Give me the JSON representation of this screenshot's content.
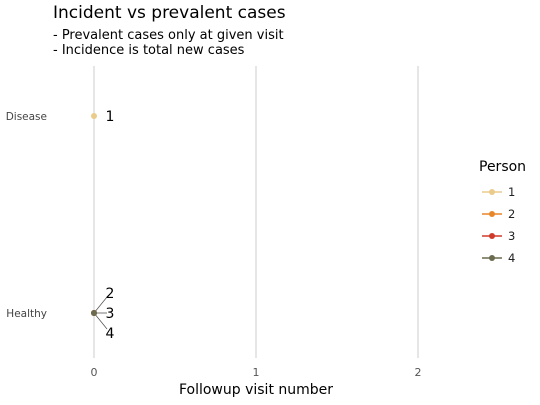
{
  "chart_data": {
    "type": "scatter",
    "title": "Incident vs prevalent cases",
    "subtitle_lines": [
      "- Prevalent cases only at given visit",
      "- Incidence is total new cases"
    ],
    "xlabel": "Followup visit number",
    "ylabel": "",
    "x_ticks": [
      "0",
      "1",
      "2"
    ],
    "xlim": [
      0,
      2
    ],
    "y_categories": [
      "Healthy",
      "Disease"
    ],
    "grid": "vertical major lines",
    "legend": {
      "title": "Person",
      "placement": "right"
    },
    "series": [
      {
        "name": "1",
        "color": "#EBCB8B",
        "points": [
          {
            "x": 0,
            "y": "Disease",
            "label": "1"
          }
        ]
      },
      {
        "name": "2",
        "color": "#E8862A",
        "points": [
          {
            "x": 0,
            "y": "Healthy",
            "label": "2"
          }
        ]
      },
      {
        "name": "3",
        "color": "#D03A2B",
        "points": [
          {
            "x": 0,
            "y": "Healthy",
            "label": "3"
          }
        ]
      },
      {
        "name": "4",
        "color": "#6B6B4E",
        "points": [
          {
            "x": 0,
            "y": "Healthy",
            "label": "4"
          }
        ]
      }
    ]
  }
}
